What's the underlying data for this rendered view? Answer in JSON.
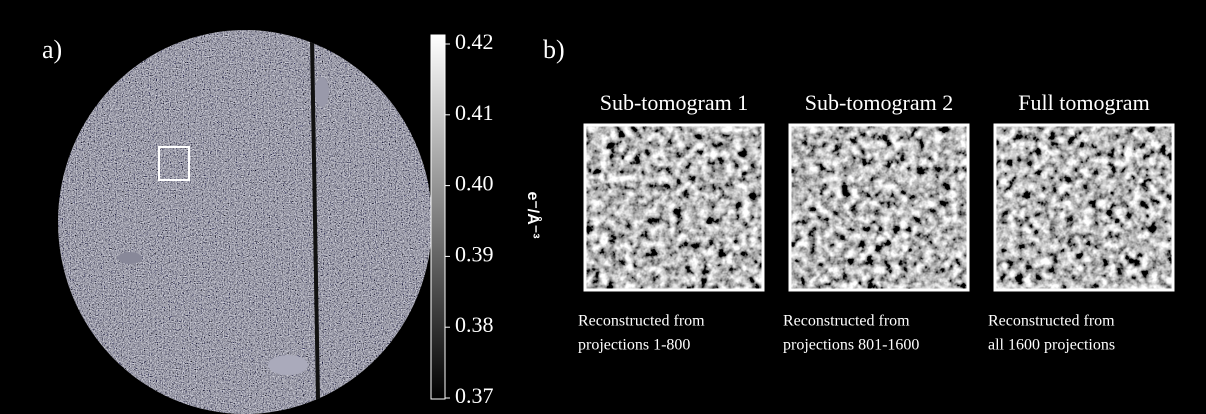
{
  "panel_a": {
    "label": "a)",
    "colorbar": {
      "ticks": [
        "0.42",
        "0.41",
        "0.40",
        "0.39",
        "0.38",
        "0.37"
      ],
      "label": "e⁻/Å⁻³"
    }
  },
  "panel_b": {
    "label": "b)",
    "panels": [
      {
        "title": "Sub-tomogram 1",
        "caption": [
          "Reconstructed from",
          "projections 1-800"
        ]
      },
      {
        "title": "Sub-tomogram 2",
        "caption": [
          "Reconstructed from",
          "projections 801-1600"
        ]
      },
      {
        "title": "Full tomogram",
        "caption": [
          "Reconstructed from",
          "all 1600 projections"
        ]
      }
    ]
  }
}
